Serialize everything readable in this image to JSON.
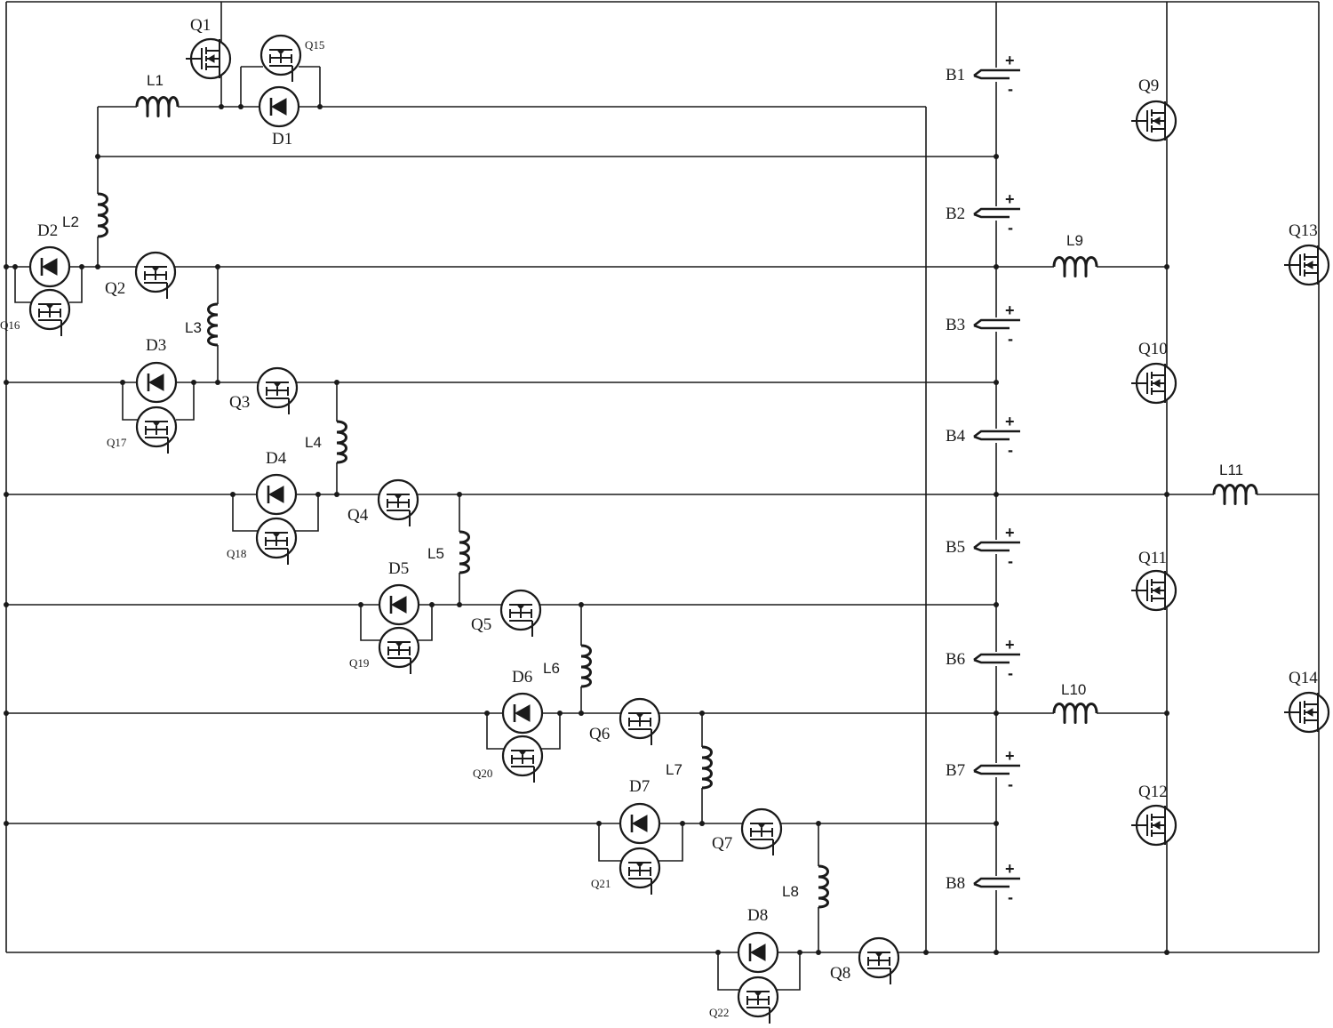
{
  "diagram": {
    "inductor_labels": [
      "L1",
      "L2",
      "L3",
      "L4",
      "L5",
      "L6",
      "L7",
      "L8",
      "L9",
      "L10",
      "L11"
    ],
    "diode_labels": [
      "D1",
      "D2",
      "D3",
      "D4",
      "D5",
      "D6",
      "D7",
      "D8"
    ],
    "transistor_labels": [
      "Q1",
      "Q2",
      "Q3",
      "Q4",
      "Q5",
      "Q6",
      "Q7",
      "Q8",
      "Q9",
      "Q10",
      "Q11",
      "Q12",
      "Q13",
      "Q14"
    ],
    "aux_transistor_labels": [
      "Q15",
      "Q16",
      "Q17",
      "Q18",
      "Q19",
      "Q20",
      "Q21",
      "Q22"
    ],
    "battery_labels": [
      "B1",
      "B2",
      "B3",
      "B4",
      "B5",
      "B6",
      "B7",
      "B8"
    ],
    "plus_sign": "+",
    "minus_sign": "-"
  }
}
